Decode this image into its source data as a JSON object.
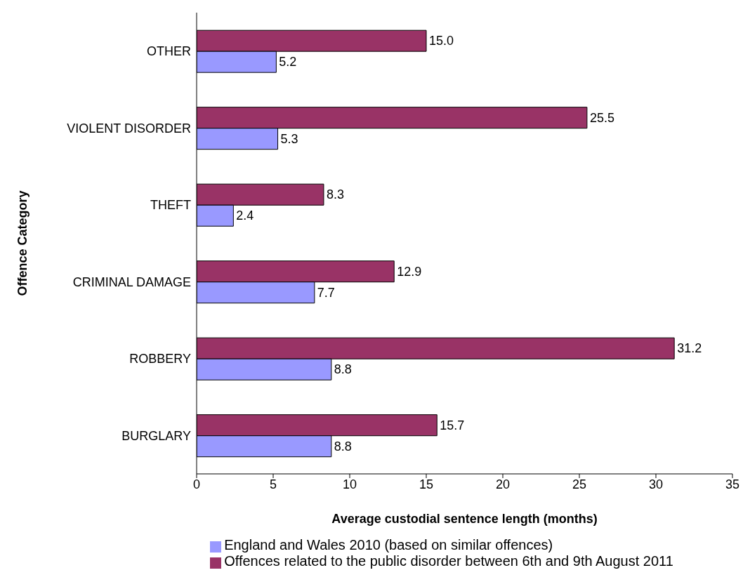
{
  "chart_data": {
    "type": "bar",
    "orientation": "horizontal",
    "xlabel": "Average custodial sentence length (months)",
    "ylabel": "Offence Category",
    "categories": [
      "OTHER",
      "VIOLENT DISORDER",
      "THEFT",
      "CRIMINAL DAMAGE",
      "ROBBERY",
      "BURGLARY"
    ],
    "series": [
      {
        "name": "Offences related to the public disorder between 6th and 9th August 2011",
        "color": "#993366",
        "values": [
          15.0,
          25.5,
          8.3,
          12.9,
          31.2,
          15.7
        ],
        "value_labels": [
          "15.0",
          "25.5",
          "8.3",
          "12.9",
          "31.2",
          "15.7"
        ]
      },
      {
        "name": "England and Wales 2010 (based on similar offences)",
        "color": "#9999ff",
        "values": [
          5.2,
          5.3,
          2.4,
          7.7,
          8.8,
          8.8
        ],
        "value_labels": [
          "5.2",
          "5.3",
          "2.4",
          "7.7",
          "8.8",
          "8.8"
        ]
      }
    ],
    "xlim": [
      0,
      35
    ],
    "xticks": [
      0,
      5,
      10,
      15,
      20,
      25,
      30,
      35
    ],
    "legend": "bottom"
  }
}
